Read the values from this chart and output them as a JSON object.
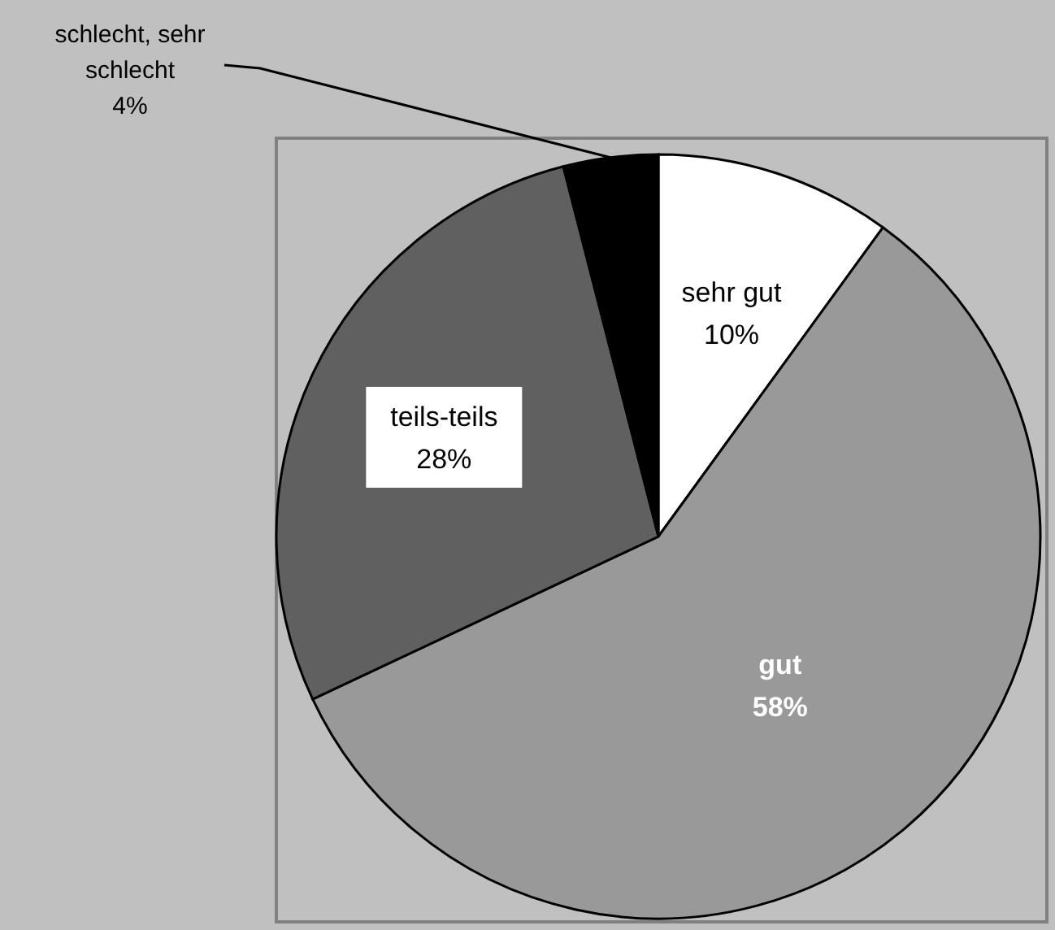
{
  "chart_data": {
    "type": "pie",
    "categories": [
      "sehr gut",
      "gut",
      "teils-teils",
      "schlecht, sehr schlecht"
    ],
    "values": [
      10,
      58,
      28,
      4
    ],
    "colors": [
      "#ffffff",
      "#999999",
      "#606060",
      "#000000"
    ],
    "value_labels": [
      "10%",
      "58%",
      "28%",
      "4%"
    ]
  }
}
